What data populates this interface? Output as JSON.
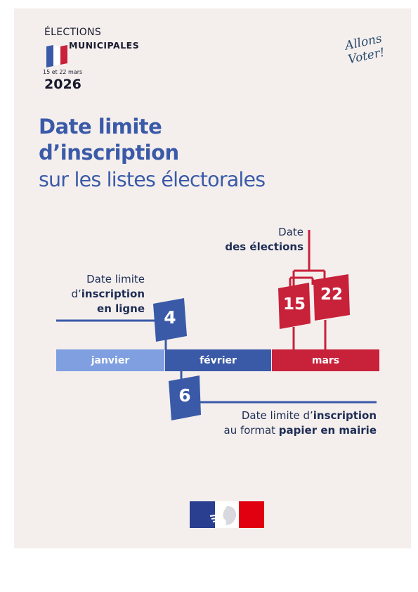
{
  "header": {
    "elections": "ÉLECTIONS",
    "municipales": "MUNICIPALES",
    "dates": "15 et 22 mars",
    "year": "2026",
    "slogan_line1": "Allons",
    "slogan_line2": "Voter!"
  },
  "title": {
    "line1": "Date limite",
    "line2": "d’inscription",
    "line3": "sur les listes électorales"
  },
  "timeline": {
    "months": [
      "janvier",
      "février",
      "mars"
    ],
    "election_label_line1": "Date",
    "election_label_line2": "des élections",
    "online_label_line1_a": "Date limite",
    "online_label_line2_a": "d’",
    "online_label_line2_b": "inscription",
    "online_label_line3": "en ligne",
    "online_day": "4",
    "paper_label_line1_a": "Date limite d’",
    "paper_label_line1_b": "inscription",
    "paper_label_line2_a": "au format ",
    "paper_label_line2_b": "papier en mairie",
    "paper_day": "6",
    "election_day_1": "15",
    "election_day_2": "22"
  },
  "colors": {
    "blue_dark": "#3a5aa8",
    "blue_light": "#7f9fe0",
    "red": "#c8213a",
    "navy": "#1e2d55",
    "background": "#f4efed"
  }
}
